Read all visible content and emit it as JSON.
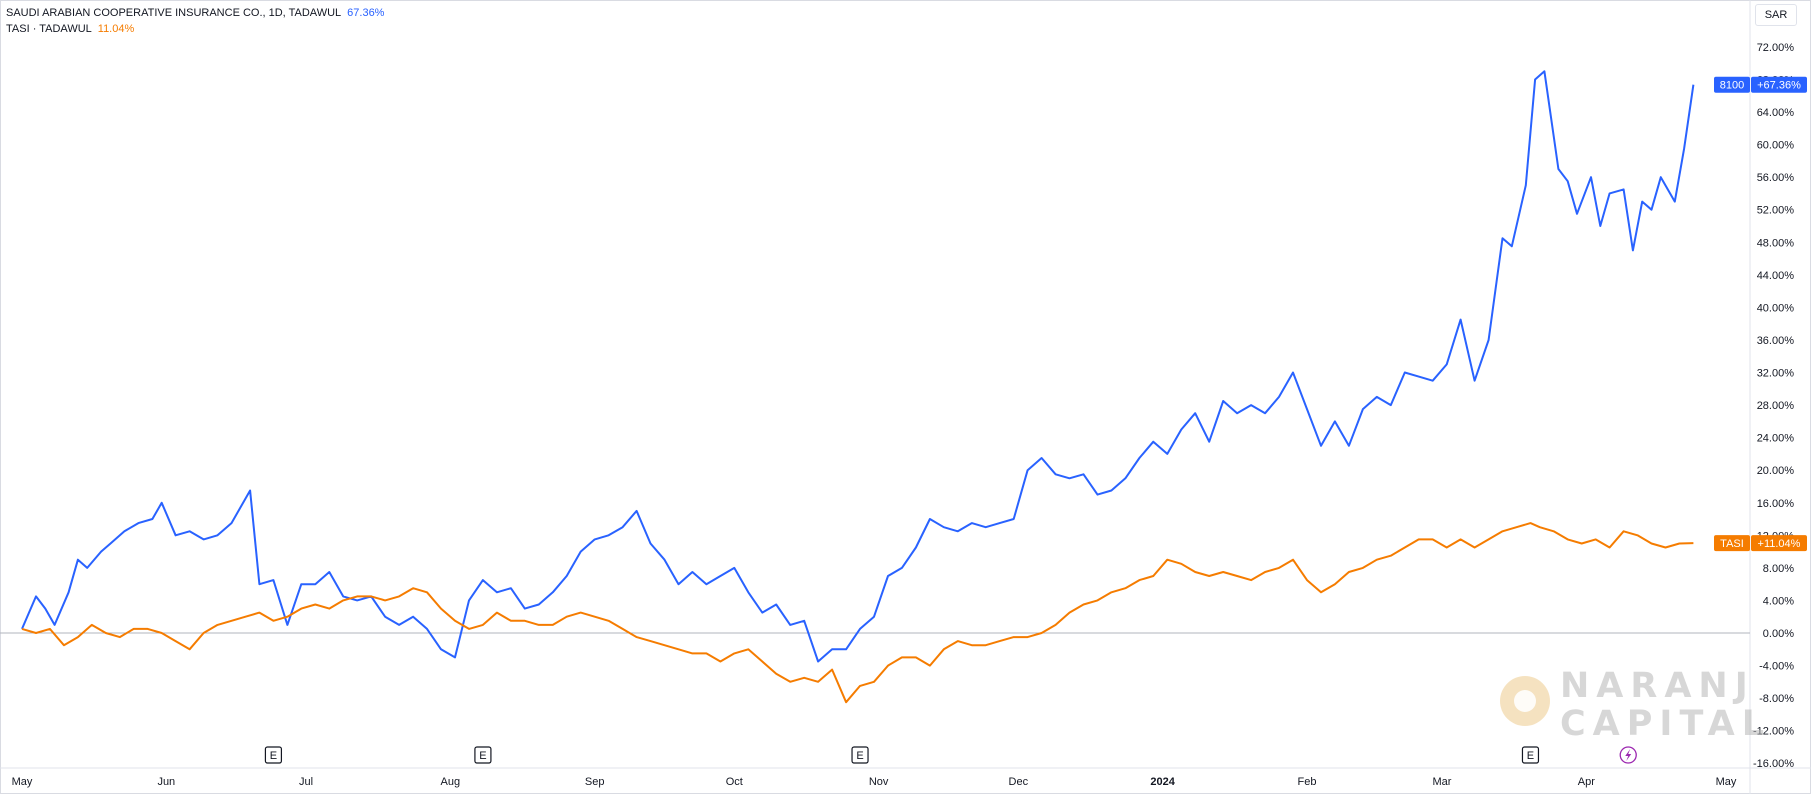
{
  "legend": {
    "series1_name": "SAUDI ARABIAN COOPERATIVE INSURANCE CO., 1D, TADAWUL",
    "series1_value": "67.36%",
    "series2_name": "TASI · TADAWUL",
    "series2_value": "11.04%"
  },
  "currency": "SAR",
  "badges": {
    "series1_symbol": "8100",
    "series1_value": "+67.36%",
    "series2_symbol": "TASI",
    "series2_value": "+11.04%"
  },
  "watermark": {
    "line1": "NARANJ",
    "line2": "CAPITAL"
  },
  "colors": {
    "series1": "#2962ff",
    "series2": "#f57c00",
    "earnings_marker": "#131722",
    "dividend_marker": "#9c27b0"
  },
  "chart_data": {
    "type": "line",
    "title": "",
    "y_unit": "%",
    "ylim": [
      -16,
      74
    ],
    "y_ticks": [
      "72.00%",
      "68.00%",
      "64.00%",
      "60.00%",
      "56.00%",
      "52.00%",
      "48.00%",
      "44.00%",
      "40.00%",
      "36.00%",
      "32.00%",
      "28.00%",
      "24.00%",
      "20.00%",
      "16.00%",
      "12.00%",
      "8.00%",
      "4.00%",
      "0.00%",
      "-4.00%",
      "-8.00%",
      "-12.00%",
      "-16.00%"
    ],
    "x_ticks": [
      "May",
      "Jun",
      "Jul",
      "Aug",
      "Sep",
      "Oct",
      "Nov",
      "Dec",
      "2024",
      "Feb",
      "Mar",
      "Apr",
      "May"
    ],
    "x_tick_dates": [
      "2023-05-01",
      "2023-06-01",
      "2023-07-01",
      "2023-08-01",
      "2023-09-01",
      "2023-10-01",
      "2023-11-01",
      "2023-12-01",
      "2024-01-01",
      "2024-02-01",
      "2024-03-01",
      "2024-04-01",
      "2024-05-01"
    ],
    "xlim": [
      "2023-05-01",
      "2024-05-01"
    ],
    "grid": false,
    "earnings_markers": {
      "label": "E",
      "dates": [
        "2023-06-24",
        "2023-08-08",
        "2023-10-28",
        "2024-03-20"
      ]
    },
    "dividend_markers": {
      "icon": "lightning-icon",
      "dates": [
        "2024-04-10"
      ]
    },
    "series": [
      {
        "name": "SAUDI ARABIAN COOPERATIVE INSURANCE CO., 1D, TADAWUL",
        "color": "#2962ff",
        "last": 67.36,
        "points": [
          [
            "2023-05-01",
            0.5
          ],
          [
            "2023-05-04",
            4.5
          ],
          [
            "2023-05-06",
            3.0
          ],
          [
            "2023-05-08",
            1.0
          ],
          [
            "2023-05-11",
            5.0
          ],
          [
            "2023-05-13",
            9.0
          ],
          [
            "2023-05-15",
            8.0
          ],
          [
            "2023-05-18",
            10.0
          ],
          [
            "2023-05-20",
            11.0
          ],
          [
            "2023-05-23",
            12.5
          ],
          [
            "2023-05-26",
            13.5
          ],
          [
            "2023-05-29",
            14.0
          ],
          [
            "2023-05-31",
            16.0
          ],
          [
            "2023-06-03",
            12.0
          ],
          [
            "2023-06-06",
            12.5
          ],
          [
            "2023-06-09",
            11.5
          ],
          [
            "2023-06-12",
            12.0
          ],
          [
            "2023-06-15",
            13.5
          ],
          [
            "2023-06-19",
            17.5
          ],
          [
            "2023-06-21",
            6.0
          ],
          [
            "2023-06-24",
            6.5
          ],
          [
            "2023-06-27",
            1.0
          ],
          [
            "2023-06-30",
            6.0
          ],
          [
            "2023-07-03",
            6.0
          ],
          [
            "2023-07-06",
            7.5
          ],
          [
            "2023-07-09",
            4.5
          ],
          [
            "2023-07-12",
            4.0
          ],
          [
            "2023-07-15",
            4.5
          ],
          [
            "2023-07-18",
            2.0
          ],
          [
            "2023-07-21",
            1.0
          ],
          [
            "2023-07-24",
            2.0
          ],
          [
            "2023-07-27",
            0.5
          ],
          [
            "2023-07-30",
            -2.0
          ],
          [
            "2023-08-02",
            -3.0
          ],
          [
            "2023-08-05",
            4.0
          ],
          [
            "2023-08-08",
            6.5
          ],
          [
            "2023-08-11",
            5.0
          ],
          [
            "2023-08-14",
            5.5
          ],
          [
            "2023-08-17",
            3.0
          ],
          [
            "2023-08-20",
            3.5
          ],
          [
            "2023-08-23",
            5.0
          ],
          [
            "2023-08-26",
            7.0
          ],
          [
            "2023-08-29",
            10.0
          ],
          [
            "2023-09-01",
            11.5
          ],
          [
            "2023-09-04",
            12.0
          ],
          [
            "2023-09-07",
            13.0
          ],
          [
            "2023-09-10",
            15.0
          ],
          [
            "2023-09-13",
            11.0
          ],
          [
            "2023-09-16",
            9.0
          ],
          [
            "2023-09-19",
            6.0
          ],
          [
            "2023-09-22",
            7.5
          ],
          [
            "2023-09-25",
            6.0
          ],
          [
            "2023-09-28",
            7.0
          ],
          [
            "2023-10-01",
            8.0
          ],
          [
            "2023-10-04",
            5.0
          ],
          [
            "2023-10-07",
            2.5
          ],
          [
            "2023-10-10",
            3.5
          ],
          [
            "2023-10-13",
            1.0
          ],
          [
            "2023-10-16",
            1.5
          ],
          [
            "2023-10-19",
            -3.5
          ],
          [
            "2023-10-22",
            -2.0
          ],
          [
            "2023-10-25",
            -2.0
          ],
          [
            "2023-10-28",
            0.5
          ],
          [
            "2023-10-31",
            2.0
          ],
          [
            "2023-11-03",
            7.0
          ],
          [
            "2023-11-06",
            8.0
          ],
          [
            "2023-11-09",
            10.5
          ],
          [
            "2023-11-12",
            14.0
          ],
          [
            "2023-11-15",
            13.0
          ],
          [
            "2023-11-18",
            12.5
          ],
          [
            "2023-11-21",
            13.5
          ],
          [
            "2023-11-24",
            13.0
          ],
          [
            "2023-11-27",
            13.5
          ],
          [
            "2023-11-30",
            14.0
          ],
          [
            "2023-12-03",
            20.0
          ],
          [
            "2023-12-06",
            21.5
          ],
          [
            "2023-12-09",
            19.5
          ],
          [
            "2023-12-12",
            19.0
          ],
          [
            "2023-12-15",
            19.5
          ],
          [
            "2023-12-18",
            17.0
          ],
          [
            "2023-12-21",
            17.5
          ],
          [
            "2023-12-24",
            19.0
          ],
          [
            "2023-12-27",
            21.5
          ],
          [
            "2023-12-30",
            23.5
          ],
          [
            "2024-01-02",
            22.0
          ],
          [
            "2024-01-05",
            25.0
          ],
          [
            "2024-01-08",
            27.0
          ],
          [
            "2024-01-11",
            23.5
          ],
          [
            "2024-01-14",
            28.5
          ],
          [
            "2024-01-17",
            27.0
          ],
          [
            "2024-01-20",
            28.0
          ],
          [
            "2024-01-23",
            27.0
          ],
          [
            "2024-01-26",
            29.0
          ],
          [
            "2024-01-29",
            32.0
          ],
          [
            "2024-02-01",
            27.5
          ],
          [
            "2024-02-04",
            23.0
          ],
          [
            "2024-02-07",
            26.0
          ],
          [
            "2024-02-10",
            23.0
          ],
          [
            "2024-02-13",
            27.5
          ],
          [
            "2024-02-16",
            29.0
          ],
          [
            "2024-02-19",
            28.0
          ],
          [
            "2024-02-22",
            32.0
          ],
          [
            "2024-02-25",
            31.5
          ],
          [
            "2024-02-28",
            31.0
          ],
          [
            "2024-03-02",
            33.0
          ],
          [
            "2024-03-05",
            38.5
          ],
          [
            "2024-03-08",
            31.0
          ],
          [
            "2024-03-11",
            36.0
          ],
          [
            "2024-03-14",
            48.5
          ],
          [
            "2024-03-16",
            47.5
          ],
          [
            "2024-03-19",
            55.0
          ],
          [
            "2024-03-21",
            68.0
          ],
          [
            "2024-03-23",
            69.0
          ],
          [
            "2024-03-26",
            57.0
          ],
          [
            "2024-03-28",
            55.5
          ],
          [
            "2024-03-30",
            51.5
          ],
          [
            "2024-04-02",
            56.0
          ],
          [
            "2024-04-04",
            50.0
          ],
          [
            "2024-04-06",
            54.0
          ],
          [
            "2024-04-09",
            54.5
          ],
          [
            "2024-04-11",
            47.0
          ],
          [
            "2024-04-13",
            53.0
          ],
          [
            "2024-04-15",
            52.0
          ],
          [
            "2024-04-17",
            56.0
          ],
          [
            "2024-04-20",
            53.0
          ],
          [
            "2024-04-22",
            59.5
          ],
          [
            "2024-04-24",
            67.36
          ]
        ]
      },
      {
        "name": "TASI · TADAWUL",
        "color": "#f57c00",
        "last": 11.04,
        "points": [
          [
            "2023-05-01",
            0.5
          ],
          [
            "2023-05-04",
            0.0
          ],
          [
            "2023-05-07",
            0.5
          ],
          [
            "2023-05-10",
            -1.5
          ],
          [
            "2023-05-13",
            -0.5
          ],
          [
            "2023-05-16",
            1.0
          ],
          [
            "2023-05-19",
            0.0
          ],
          [
            "2023-05-22",
            -0.5
          ],
          [
            "2023-05-25",
            0.5
          ],
          [
            "2023-05-28",
            0.5
          ],
          [
            "2023-05-31",
            0.0
          ],
          [
            "2023-06-03",
            -1.0
          ],
          [
            "2023-06-06",
            -2.0
          ],
          [
            "2023-06-09",
            0.0
          ],
          [
            "2023-06-12",
            1.0
          ],
          [
            "2023-06-15",
            1.5
          ],
          [
            "2023-06-18",
            2.0
          ],
          [
            "2023-06-21",
            2.5
          ],
          [
            "2023-06-24",
            1.5
          ],
          [
            "2023-06-27",
            2.0
          ],
          [
            "2023-06-30",
            3.0
          ],
          [
            "2023-07-03",
            3.5
          ],
          [
            "2023-07-06",
            3.0
          ],
          [
            "2023-07-09",
            4.0
          ],
          [
            "2023-07-12",
            4.5
          ],
          [
            "2023-07-15",
            4.5
          ],
          [
            "2023-07-18",
            4.0
          ],
          [
            "2023-07-21",
            4.5
          ],
          [
            "2023-07-24",
            5.5
          ],
          [
            "2023-07-27",
            5.0
          ],
          [
            "2023-07-30",
            3.0
          ],
          [
            "2023-08-02",
            1.5
          ],
          [
            "2023-08-05",
            0.5
          ],
          [
            "2023-08-08",
            1.0
          ],
          [
            "2023-08-11",
            2.5
          ],
          [
            "2023-08-14",
            1.5
          ],
          [
            "2023-08-17",
            1.5
          ],
          [
            "2023-08-20",
            1.0
          ],
          [
            "2023-08-23",
            1.0
          ],
          [
            "2023-08-26",
            2.0
          ],
          [
            "2023-08-29",
            2.5
          ],
          [
            "2023-09-01",
            2.0
          ],
          [
            "2023-09-04",
            1.5
          ],
          [
            "2023-09-07",
            0.5
          ],
          [
            "2023-09-10",
            -0.5
          ],
          [
            "2023-09-13",
            -1.0
          ],
          [
            "2023-09-16",
            -1.5
          ],
          [
            "2023-09-19",
            -2.0
          ],
          [
            "2023-09-22",
            -2.5
          ],
          [
            "2023-09-25",
            -2.5
          ],
          [
            "2023-09-28",
            -3.5
          ],
          [
            "2023-10-01",
            -2.5
          ],
          [
            "2023-10-04",
            -2.0
          ],
          [
            "2023-10-07",
            -3.5
          ],
          [
            "2023-10-10",
            -5.0
          ],
          [
            "2023-10-13",
            -6.0
          ],
          [
            "2023-10-16",
            -5.5
          ],
          [
            "2023-10-19",
            -6.0
          ],
          [
            "2023-10-22",
            -4.5
          ],
          [
            "2023-10-25",
            -8.5
          ],
          [
            "2023-10-28",
            -6.5
          ],
          [
            "2023-10-31",
            -6.0
          ],
          [
            "2023-11-03",
            -4.0
          ],
          [
            "2023-11-06",
            -3.0
          ],
          [
            "2023-11-09",
            -3.0
          ],
          [
            "2023-11-12",
            -4.0
          ],
          [
            "2023-11-15",
            -2.0
          ],
          [
            "2023-11-18",
            -1.0
          ],
          [
            "2023-11-21",
            -1.5
          ],
          [
            "2023-11-24",
            -1.5
          ],
          [
            "2023-11-27",
            -1.0
          ],
          [
            "2023-11-30",
            -0.5
          ],
          [
            "2023-12-03",
            -0.5
          ],
          [
            "2023-12-06",
            0.0
          ],
          [
            "2023-12-09",
            1.0
          ],
          [
            "2023-12-12",
            2.5
          ],
          [
            "2023-12-15",
            3.5
          ],
          [
            "2023-12-18",
            4.0
          ],
          [
            "2023-12-21",
            5.0
          ],
          [
            "2023-12-24",
            5.5
          ],
          [
            "2023-12-27",
            6.5
          ],
          [
            "2023-12-30",
            7.0
          ],
          [
            "2024-01-02",
            9.0
          ],
          [
            "2024-01-05",
            8.5
          ],
          [
            "2024-01-08",
            7.5
          ],
          [
            "2024-01-11",
            7.0
          ],
          [
            "2024-01-14",
            7.5
          ],
          [
            "2024-01-17",
            7.0
          ],
          [
            "2024-01-20",
            6.5
          ],
          [
            "2024-01-23",
            7.5
          ],
          [
            "2024-01-26",
            8.0
          ],
          [
            "2024-01-29",
            9.0
          ],
          [
            "2024-02-01",
            6.5
          ],
          [
            "2024-02-04",
            5.0
          ],
          [
            "2024-02-07",
            6.0
          ],
          [
            "2024-02-10",
            7.5
          ],
          [
            "2024-02-13",
            8.0
          ],
          [
            "2024-02-16",
            9.0
          ],
          [
            "2024-02-19",
            9.5
          ],
          [
            "2024-02-22",
            10.5
          ],
          [
            "2024-02-25",
            11.5
          ],
          [
            "2024-02-28",
            11.5
          ],
          [
            "2024-03-02",
            10.5
          ],
          [
            "2024-03-05",
            11.5
          ],
          [
            "2024-03-08",
            10.5
          ],
          [
            "2024-03-11",
            11.5
          ],
          [
            "2024-03-14",
            12.5
          ],
          [
            "2024-03-17",
            13.0
          ],
          [
            "2024-03-20",
            13.5
          ],
          [
            "2024-03-22",
            13.0
          ],
          [
            "2024-03-25",
            12.5
          ],
          [
            "2024-03-28",
            11.5
          ],
          [
            "2024-03-31",
            11.0
          ],
          [
            "2024-04-03",
            11.5
          ],
          [
            "2024-04-06",
            10.5
          ],
          [
            "2024-04-09",
            12.5
          ],
          [
            "2024-04-12",
            12.0
          ],
          [
            "2024-04-15",
            11.0
          ],
          [
            "2024-04-18",
            10.5
          ],
          [
            "2024-04-21",
            11.0
          ],
          [
            "2024-04-24",
            11.04
          ]
        ]
      }
    ]
  }
}
